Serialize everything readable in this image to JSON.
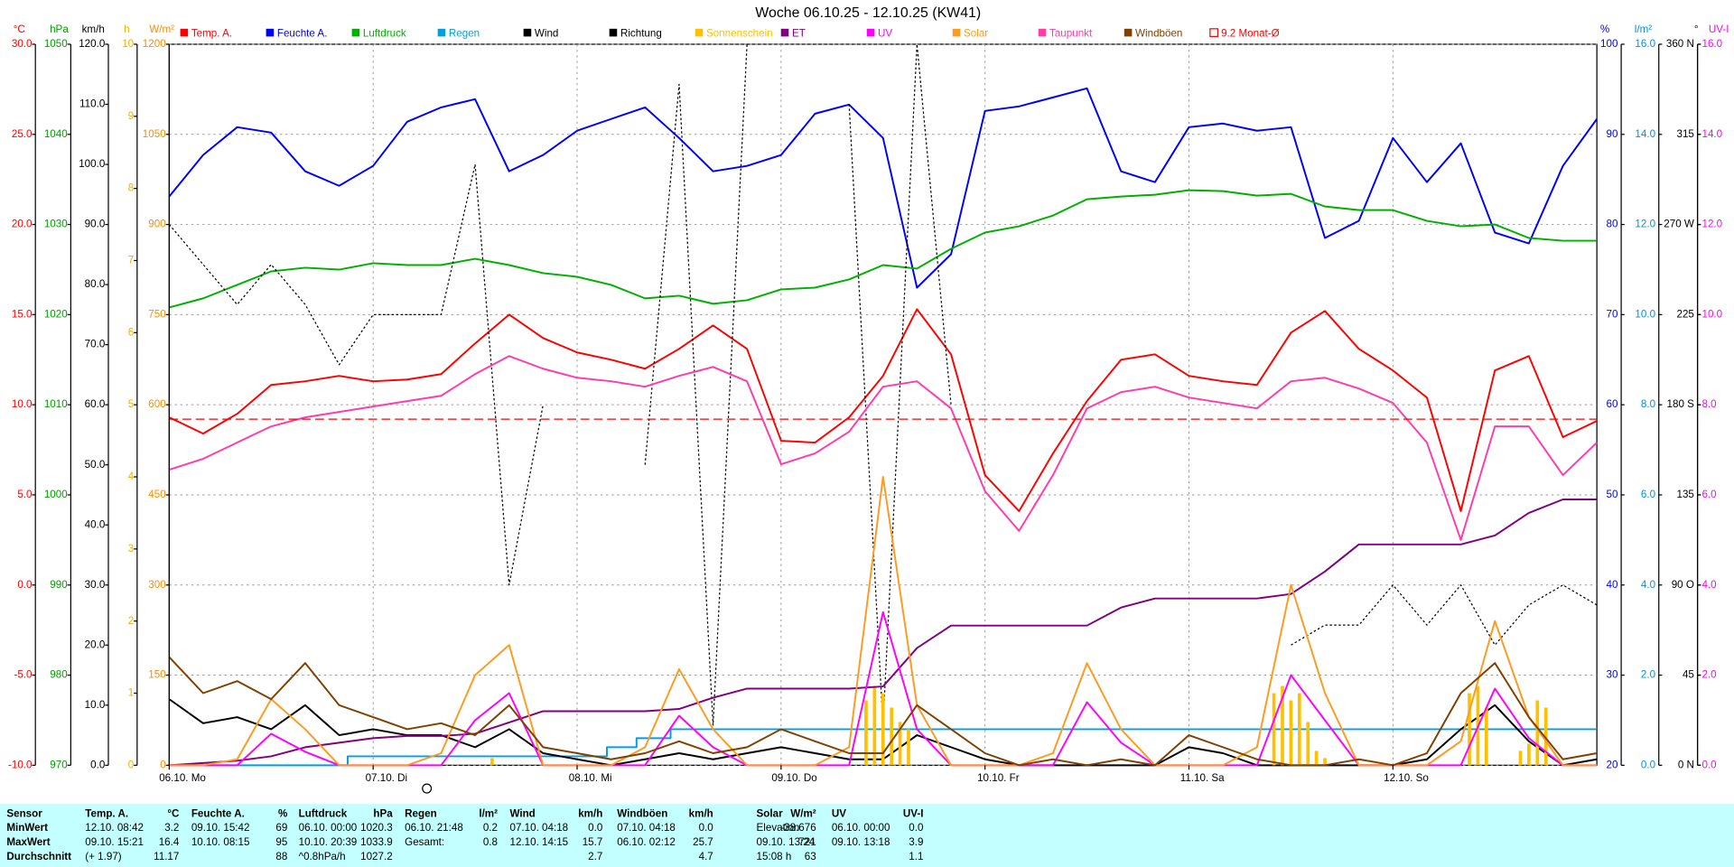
{
  "chart_data": {
    "type": "line",
    "title": "Woche 06.10.25 - 12.10.25 (KW41)",
    "grid": true,
    "xlim": [
      0,
      168
    ],
    "xticks": [
      {
        "value": 0,
        "label": "06.10. Mo"
      },
      {
        "value": 24,
        "label": "07.10. Di"
      },
      {
        "value": 48,
        "label": "08.10. Mi"
      },
      {
        "value": 72,
        "label": "09.10. Do"
      },
      {
        "value": 96,
        "label": "10.10. Fr"
      },
      {
        "value": 120,
        "label": "11.10. Sa"
      },
      {
        "value": 144,
        "label": "12.10. So"
      }
    ],
    "x": [
      0,
      4,
      8,
      12,
      16,
      20,
      24,
      28,
      32,
      36,
      40,
      44,
      48,
      52,
      56,
      60,
      64,
      68,
      72,
      76,
      80,
      84,
      88,
      92,
      96,
      100,
      104,
      108,
      112,
      116,
      120,
      124,
      128,
      132,
      136,
      140,
      144,
      148,
      152,
      156,
      160,
      164,
      168
    ],
    "axes": [
      {
        "unit": "°C",
        "side": "left",
        "color": "#ff0000",
        "lim": [
          -10,
          30
        ],
        "ticks": [
          {
            "value": -10,
            "label": "-10.0"
          },
          {
            "value": -5,
            "label": "-5.0"
          },
          {
            "value": 0,
            "label": "0.0"
          },
          {
            "value": 5,
            "label": "5.0"
          },
          {
            "value": 10,
            "label": "10.0"
          },
          {
            "value": 15,
            "label": "15.0"
          },
          {
            "value": 20,
            "label": "20.0"
          },
          {
            "value": 25,
            "label": "25.0"
          },
          {
            "value": 30,
            "label": "30.0"
          }
        ]
      },
      {
        "unit": "hPa",
        "side": "left",
        "color": "#00a000",
        "lim": [
          970,
          1050
        ],
        "ticks": [
          970,
          980,
          990,
          1000,
          1010,
          1020,
          1030,
          1040,
          1050
        ]
      },
      {
        "unit": "km/h",
        "side": "left",
        "color": "#000000",
        "lim": [
          0,
          120
        ],
        "ticks": [
          {
            "value": 0,
            "label": "0.0"
          },
          {
            "value": 10,
            "label": "10.0"
          },
          {
            "value": 20,
            "label": "20.0"
          },
          {
            "value": 30,
            "label": "30.0"
          },
          {
            "value": 40,
            "label": "40.0"
          },
          {
            "value": 50,
            "label": "50.0"
          },
          {
            "value": 60,
            "label": "60.0"
          },
          {
            "value": 70,
            "label": "70.0"
          },
          {
            "value": 80,
            "label": "80.0"
          },
          {
            "value": 90,
            "label": "90.0"
          },
          {
            "value": 100,
            "label": "100.0"
          },
          {
            "value": 110,
            "label": "110.0"
          },
          {
            "value": 120,
            "label": "120.0"
          }
        ]
      },
      {
        "unit": "h",
        "side": "left",
        "color": "#f0b000",
        "lim": [
          0,
          10
        ],
        "ticks": [
          0,
          1,
          2,
          3,
          4,
          5,
          6,
          7,
          8,
          9,
          10
        ]
      },
      {
        "unit": "W/m²",
        "side": "left",
        "color": "#ff8c00",
        "lim": [
          0,
          1200
        ],
        "ticks": [
          0,
          150,
          300,
          450,
          600,
          750,
          900,
          1050,
          1200
        ]
      },
      {
        "unit": "%",
        "side": "right",
        "color": "#0000ff",
        "lim": [
          20,
          100
        ],
        "ticks": [
          20,
          30,
          40,
          50,
          60,
          70,
          80,
          90,
          100
        ]
      },
      {
        "unit": "l/m²",
        "side": "right",
        "color": "#0090e0",
        "lim": [
          0,
          16
        ],
        "ticks": [
          {
            "value": 0,
            "label": "0.0"
          },
          {
            "value": 2,
            "label": "2.0"
          },
          {
            "value": 4,
            "label": "4.0"
          },
          {
            "value": 6,
            "label": "6.0"
          },
          {
            "value": 8,
            "label": "8.0"
          },
          {
            "value": 10,
            "label": "10.0"
          },
          {
            "value": 12,
            "label": "12.0"
          },
          {
            "value": 14,
            "label": "14.0"
          },
          {
            "value": 16,
            "label": "16.0"
          }
        ]
      },
      {
        "unit": "°",
        "side": "right",
        "color": "#000000",
        "lim": [
          0,
          360
        ],
        "ticks": [
          {
            "value": 0,
            "label": "0 N"
          },
          45,
          {
            "value": 90,
            "label": "90 O"
          },
          135,
          {
            "value": 180,
            "label": "180 S"
          },
          225,
          {
            "value": 270,
            "label": "270 W"
          },
          315,
          {
            "value": 360,
            "label": "360 N"
          }
        ]
      },
      {
        "unit": "UV-I",
        "side": "right",
        "color": "#ff00ff",
        "lim": [
          0,
          16
        ],
        "ticks": [
          {
            "value": 0,
            "label": "0.0"
          },
          {
            "value": 2,
            "label": "2.0"
          },
          {
            "value": 4,
            "label": "4.0"
          },
          {
            "value": 6,
            "label": "6.0"
          },
          {
            "value": 8,
            "label": "8.0"
          },
          {
            "value": 10,
            "label": "10.0"
          },
          {
            "value": 12,
            "label": "12.0"
          },
          {
            "value": 14,
            "label": "14.0"
          },
          {
            "value": 16,
            "label": "16.0"
          }
        ]
      }
    ],
    "series": [
      {
        "name": "Temp. A.",
        "color": "#ff0000",
        "axis": "°C",
        "style": "line",
        "values": [
          9.3,
          8.4,
          9.5,
          11.1,
          11.3,
          11.6,
          11.3,
          11.4,
          11.7,
          13.4,
          15.0,
          13.7,
          12.9,
          12.5,
          12.0,
          13.1,
          14.4,
          13.1,
          8.0,
          7.9,
          9.3,
          11.6,
          15.3,
          12.8,
          6.1,
          4.1,
          7.3,
          10.2,
          12.5,
          12.8,
          11.6,
          11.3,
          11.1,
          14.0,
          15.2,
          13.1,
          11.9,
          10.4,
          4.1,
          11.9,
          12.7,
          8.2,
          9.1
        ]
      },
      {
        "name": "Feuchte A.",
        "color": "#0000ff",
        "axis": "%",
        "style": "line",
        "values": [
          83.1,
          87.7,
          90.8,
          90.2,
          85.9,
          84.3,
          86.5,
          91.4,
          93.0,
          93.9,
          85.9,
          87.7,
          90.4,
          91.7,
          93.0,
          89.6,
          85.9,
          86.5,
          87.7,
          92.3,
          93.3,
          89.6,
          73.0,
          76.7,
          92.6,
          93.1,
          94.1,
          95.1,
          85.9,
          84.7,
          90.8,
          91.2,
          90.4,
          90.8,
          78.5,
          80.4,
          89.6,
          84.7,
          89.0,
          79.1,
          77.9,
          86.5,
          91.7
        ]
      },
      {
        "name": "Luftdruck",
        "color": "#00b000",
        "axis": "hPa",
        "style": "line",
        "values": [
          1020.8,
          1021.8,
          1023.3,
          1024.8,
          1025.2,
          1025.0,
          1025.7,
          1025.5,
          1025.5,
          1026.2,
          1025.5,
          1024.6,
          1024.2,
          1023.3,
          1021.8,
          1022.1,
          1021.2,
          1021.6,
          1022.8,
          1023.0,
          1023.9,
          1025.5,
          1025.1,
          1027.3,
          1029.1,
          1029.8,
          1031.0,
          1032.8,
          1033.1,
          1033.3,
          1033.8,
          1033.7,
          1033.2,
          1033.4,
          1032.0,
          1031.6,
          1031.6,
          1030.4,
          1029.8,
          1030.0,
          1028.5,
          1028.2,
          1028.2
        ]
      },
      {
        "name": "Regen",
        "color": "#00a0e0",
        "axis": "l/m²",
        "style": "line",
        "x": [
          0,
          21,
          21,
          51.5,
          51.5,
          55,
          55,
          59,
          59,
          168
        ],
        "values": [
          0,
          0,
          0.2,
          0.2,
          0.4,
          0.4,
          0.6,
          0.6,
          0.8,
          0.8
        ]
      },
      {
        "name": "Wind",
        "color": "#000000",
        "axis": "km/h",
        "style": "line",
        "values": [
          11,
          7,
          8,
          6,
          10,
          5,
          6,
          5,
          5,
          3,
          6,
          2,
          1,
          0,
          1,
          2,
          1,
          2,
          3,
          2,
          1,
          1,
          5,
          3,
          1,
          0,
          0,
          0,
          0,
          0,
          3,
          2,
          0,
          0,
          0,
          0,
          0,
          1,
          6,
          10,
          4,
          0,
          1
        ]
      },
      {
        "name": "Richtung",
        "color": "#000000",
        "axis": "°",
        "style": "dashed",
        "values": [
          270,
          250,
          230,
          250,
          230,
          200,
          225,
          225,
          225,
          300,
          90,
          180,
          null,
          null,
          150,
          340,
          20,
          360,
          null,
          null,
          330,
          20,
          360,
          180,
          null,
          null,
          null,
          225,
          null,
          null,
          null,
          90,
          null,
          60,
          70,
          70,
          90,
          70,
          90,
          60,
          80,
          90,
          80
        ]
      },
      {
        "name": "Sonnenschein",
        "color": "#ffc000",
        "axis": "h",
        "style": "bar",
        "x": [
          38,
          82,
          83,
          84,
          85,
          86,
          87,
          130,
          131,
          132,
          133,
          134,
          135,
          136,
          153,
          154,
          155,
          159,
          160,
          161,
          162
        ],
        "values": [
          0.1,
          0.9,
          1.1,
          1.0,
          0.8,
          0.6,
          0.5,
          1.0,
          1.1,
          0.9,
          1.0,
          0.6,
          0.2,
          0.1,
          1.0,
          1.1,
          0.8,
          0.2,
          0.3,
          0.9,
          0.8
        ]
      },
      {
        "name": "ET",
        "color": "#800080",
        "axis": "l/m²",
        "style": "line",
        "values": [
          0,
          0.05,
          0.1,
          0.2,
          0.4,
          0.5,
          0.6,
          0.65,
          0.65,
          0.7,
          0.95,
          1.2,
          1.2,
          1.2,
          1.2,
          1.25,
          1.5,
          1.7,
          1.7,
          1.7,
          1.7,
          1.75,
          2.6,
          3.1,
          3.1,
          3.1,
          3.1,
          3.1,
          3.5,
          3.7,
          3.7,
          3.7,
          3.7,
          3.8,
          4.3,
          4.9,
          4.9,
          4.9,
          4.9,
          5.1,
          5.6,
          5.9,
          5.9
        ]
      },
      {
        "name": "UV",
        "color": "#ff00ff",
        "axis": "UV-I",
        "style": "line",
        "values": [
          0,
          0,
          0,
          0.7,
          0.3,
          0,
          0,
          0,
          0,
          1.0,
          1.6,
          0,
          0,
          0,
          0,
          1.1,
          0.4,
          0,
          0,
          0,
          0,
          3.4,
          0.8,
          0,
          0,
          0,
          0,
          1.4,
          0.5,
          0,
          0,
          0,
          0,
          2.0,
          1.0,
          0,
          0,
          0,
          0,
          1.7,
          0.6,
          0,
          0
        ]
      },
      {
        "name": "Solar",
        "color": "#ff9a20",
        "axis": "W/m²",
        "style": "line",
        "values": [
          0,
          0,
          10,
          110,
          60,
          0,
          0,
          0,
          20,
          150,
          200,
          0,
          0,
          0,
          30,
          160,
          60,
          0,
          0,
          0,
          30,
          480,
          100,
          0,
          0,
          0,
          20,
          170,
          60,
          0,
          0,
          0,
          30,
          300,
          120,
          0,
          0,
          0,
          40,
          240,
          80,
          0,
          0
        ]
      },
      {
        "name": "Taupunkt",
        "color": "#ff3caa",
        "axis": "°C",
        "style": "line",
        "values": [
          6.4,
          7.0,
          7.9,
          8.8,
          9.3,
          9.6,
          9.9,
          10.2,
          10.5,
          11.7,
          12.7,
          12.0,
          11.5,
          11.3,
          11.0,
          11.6,
          12.1,
          11.3,
          6.7,
          7.3,
          8.5,
          11.0,
          11.3,
          9.8,
          5.2,
          3.0,
          6.1,
          9.8,
          10.7,
          11.0,
          10.4,
          10.1,
          9.8,
          11.3,
          11.5,
          10.9,
          10.1,
          7.9,
          2.5,
          8.8,
          8.8,
          6.1,
          7.9
        ]
      },
      {
        "name": "Windböen",
        "color": "#804000",
        "axis": "km/h",
        "style": "line",
        "values": [
          18,
          12,
          14,
          11,
          17,
          10,
          8,
          6,
          7,
          5,
          10,
          3,
          2,
          1,
          2,
          4,
          2,
          3,
          6,
          4,
          2,
          2,
          10,
          6,
          2,
          0,
          1,
          0,
          1,
          0,
          5,
          3,
          1,
          0,
          0,
          1,
          0,
          2,
          12,
          17,
          8,
          1,
          2
        ]
      },
      {
        "name": "9.2 Monat-Ø",
        "color": "#ff0000",
        "axis": "°C",
        "style": "dashed",
        "x": [
          0,
          168
        ],
        "values": [
          9.2,
          9.2
        ]
      }
    ]
  },
  "stats": {
    "header": [
      "Sensor",
      "Temp. A.",
      "°C",
      "Feuchte A.",
      "%",
      "Luftdruck",
      "hPa",
      "Regen",
      "l/m²",
      "Wind",
      "km/h",
      "Windböen",
      "km/h",
      "Solar",
      "W/m²",
      "UV",
      "UV-I"
    ],
    "rows": [
      [
        "MinWert",
        "12.10.  08:42",
        "3.2",
        "09.10.  15:42",
        "69",
        "06.10.  00:00",
        "1020.3",
        "06.10.  21:48",
        "0.2",
        "07.10.  04:18",
        "0.0",
        "07.10.  04:18",
        "0.0",
        "Elevation",
        "-38.676",
        "06.10.  00:00",
        "0.0"
      ],
      [
        "MaxWert",
        "09.10.  15:21",
        "16.4",
        "10.10.  08:15",
        "95",
        "10.10.  20:39",
        "1033.9",
        "Gesamt:",
        "0.8",
        "12.10.  14:15",
        "15.7",
        "06.10.  02:12",
        "25.7",
        "09.10.  13:24",
        "721",
        "09.10.  13:18",
        "3.9"
      ],
      [
        "Durchschnitt",
        "(+ 1.97)",
        "11.17",
        null,
        "88",
        "^0.8hPa/h",
        "1027.2",
        null,
        null,
        null,
        "2.7",
        null,
        "4.7",
        "15:08 h",
        "63",
        null,
        "1.1"
      ]
    ]
  }
}
